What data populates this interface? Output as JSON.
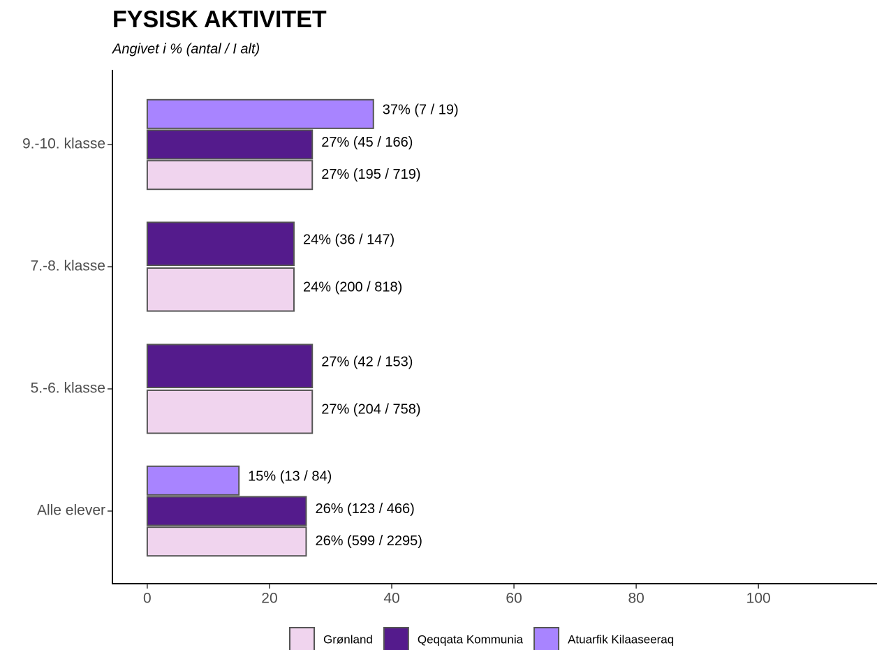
{
  "chart_data": {
    "type": "bar",
    "orientation": "horizontal",
    "title": "FYSISK AKTIVITET",
    "subtitle": "Angivet i % (antal / I alt)",
    "categories": [
      "9.-10. klasse",
      "7.-8. klasse",
      "5.-6. klasse",
      "Alle elever"
    ],
    "series": [
      {
        "name": "Grønland",
        "color": "#f0d4ee",
        "values": [
          27,
          24,
          27,
          26
        ],
        "value_labels": [
          "27% (195 / 719)",
          "24% (200 / 818)",
          "27% (204 / 758)",
          "26% (599 / 2295)"
        ]
      },
      {
        "name": "Qeqqata Kommunia",
        "color": "#541b8c",
        "values": [
          27,
          24,
          27,
          26
        ],
        "value_labels": [
          "27% (45 / 166)",
          "24% (36 / 147)",
          "27% (42 / 153)",
          "26% (123 / 466)"
        ]
      },
      {
        "name": "Atuarfik Kilaaseeraq",
        "color": "#a884ff",
        "values": [
          37,
          null,
          null,
          15
        ],
        "value_labels": [
          "37% (7 / 19)",
          null,
          null,
          "15% (13 / 84)"
        ]
      }
    ],
    "xlim": [
      -5.7,
      119.4
    ],
    "xticks": [
      0,
      20,
      40,
      60,
      80,
      100
    ],
    "legend": "bottom"
  }
}
